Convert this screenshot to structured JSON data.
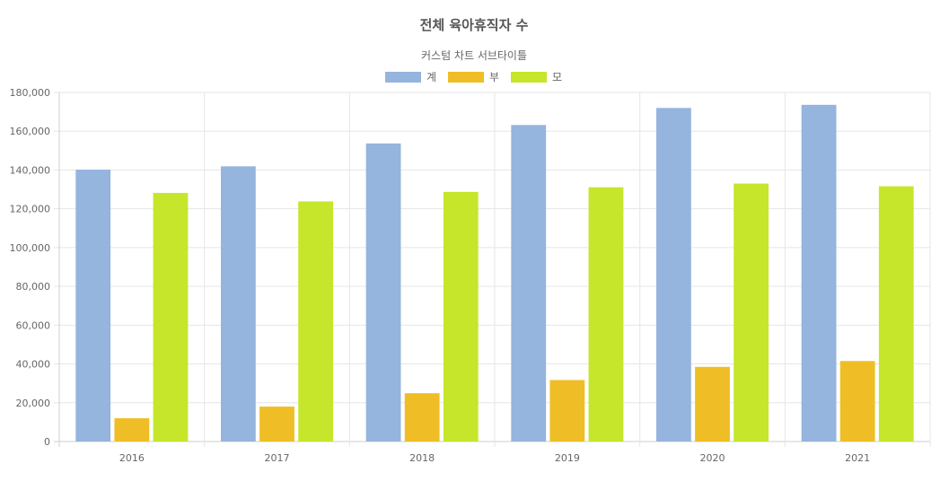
{
  "chart_data": {
    "type": "bar",
    "title": "전체 육아휴직자 수",
    "subtitle": "커스텀 차트 서브타이틀",
    "categories": [
      "2016",
      "2017",
      "2018",
      "2019",
      "2020",
      "2021"
    ],
    "series": [
      {
        "name": "계",
        "color": "#95b4de",
        "values": [
          140200,
          141900,
          153700,
          163200,
          172000,
          173600
        ]
      },
      {
        "name": "부",
        "color": "#efbe26",
        "values": [
          12000,
          18000,
          24900,
          31700,
          38500,
          41500
        ]
      },
      {
        "name": "모",
        "color": "#c5e62b",
        "values": [
          128200,
          123800,
          128700,
          131100,
          133000,
          131600
        ]
      }
    ],
    "ylim": [
      0,
      180000
    ],
    "yticks": [
      0,
      20000,
      40000,
      60000,
      80000,
      100000,
      120000,
      140000,
      160000,
      180000
    ],
    "xlabel": "",
    "ylabel": "",
    "grid": true,
    "legend_position": "top"
  }
}
